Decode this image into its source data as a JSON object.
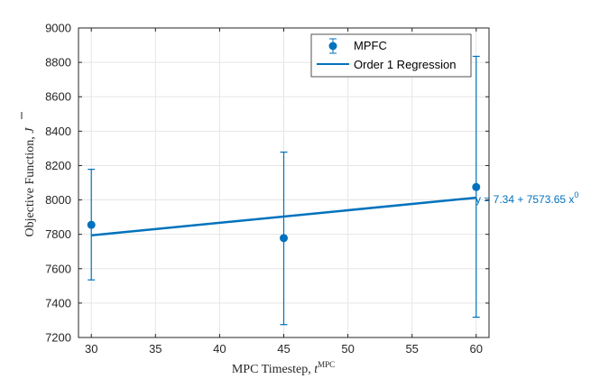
{
  "chart_data": {
    "type": "scatter",
    "title": "",
    "xlabel": "MPC Timestep,",
    "xlabel_var": "t",
    "xlabel_sup": "MPC",
    "ylabel": "Objective Function,",
    "ylabel_var": "J",
    "xlim": [
      29,
      61
    ],
    "ylim": [
      7200,
      9000
    ],
    "xticks": [
      30,
      35,
      40,
      45,
      50,
      55,
      60
    ],
    "yticks": [
      7200,
      7400,
      7600,
      7800,
      8000,
      8200,
      8400,
      8600,
      8800,
      9000
    ],
    "grid": true,
    "legend_position": "top-right",
    "series": [
      {
        "name": "MPFC",
        "kind": "errorbar",
        "x": [
          30,
          45,
          60
        ],
        "y": [
          7855,
          7778,
          8075
        ],
        "err_low": [
          7535,
          7275,
          7318
        ],
        "err_high": [
          8178,
          8278,
          8835
        ]
      },
      {
        "name": "Order 1 Regression",
        "kind": "line",
        "x": [
          30,
          60
        ],
        "y": [
          7794,
          8013
        ]
      }
    ],
    "annotation": {
      "text": "y = 7.34 + 7573.65 x",
      "sup": "0",
      "x": 60,
      "y": 8013
    },
    "colors": {
      "series": "#0072BD",
      "grid": "#e5e5e5",
      "axis": "#262626"
    }
  }
}
